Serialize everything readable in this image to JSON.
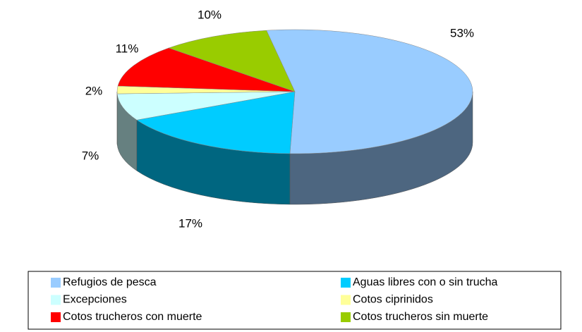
{
  "chart_data": {
    "type": "pie3d",
    "categories": [
      "Refugios de pesca",
      "Aguas libres con o sin trucha",
      "Excepciones",
      "Cotos ciprinidos",
      "Cotos trucheros con muerte",
      "Cotos trucheros sin muerte"
    ],
    "values": [
      53,
      17,
      7,
      2,
      11,
      10
    ],
    "value_labels": [
      "53%",
      "17%",
      "7%",
      "2%",
      "11%",
      "10%"
    ],
    "colors": [
      "#99ccff",
      "#00ccff",
      "#ccffff",
      "#ffff99",
      "#ff0000",
      "#99cc00"
    ],
    "legend": "bottom"
  }
}
